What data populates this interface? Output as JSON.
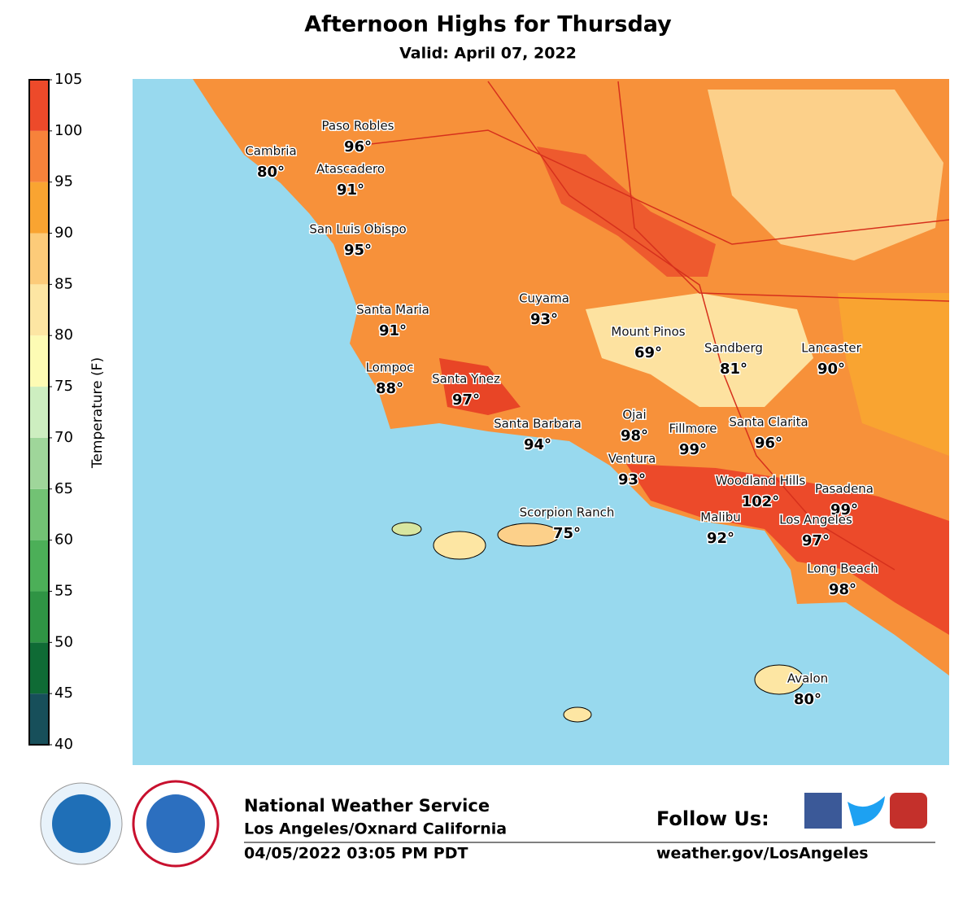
{
  "header": {
    "title": "Afternoon Highs for Thursday",
    "subtitle": "Valid: April 07, 2022"
  },
  "colorbar": {
    "label": "Temperature (F)",
    "ticks": [
      40,
      45,
      50,
      55,
      60,
      65,
      70,
      75,
      80,
      85,
      90,
      95,
      100,
      105
    ],
    "colors": [
      "#174f5a",
      "#0f6b35",
      "#2f9444",
      "#4caf58",
      "#72c274",
      "#9fd69a",
      "#cdeec0",
      "#fdfbb4",
      "#fde6a3",
      "#fccb79",
      "#f9a431",
      "#f7823a",
      "#ed4a2a"
    ]
  },
  "cities": [
    {
      "name": "Paso Robles",
      "temp": "96°"
    },
    {
      "name": "Cambria",
      "temp": "80°"
    },
    {
      "name": "Atascadero",
      "temp": "91°"
    },
    {
      "name": "San Luis Obispo",
      "temp": "95°"
    },
    {
      "name": "Santa Maria",
      "temp": "91°"
    },
    {
      "name": "Cuyama",
      "temp": "93°"
    },
    {
      "name": "Mount Pinos",
      "temp": "69°"
    },
    {
      "name": "Sandberg",
      "temp": "81°"
    },
    {
      "name": "Lancaster",
      "temp": "90°"
    },
    {
      "name": "Lompoc",
      "temp": "88°"
    },
    {
      "name": "Santa Ynez",
      "temp": "97°"
    },
    {
      "name": "Santa Barbara",
      "temp": "94°"
    },
    {
      "name": "Ojai",
      "temp": "98°"
    },
    {
      "name": "Fillmore",
      "temp": "99°"
    },
    {
      "name": "Santa Clarita",
      "temp": "96°"
    },
    {
      "name": "Ventura",
      "temp": "93°"
    },
    {
      "name": "Woodland Hills",
      "temp": "102°"
    },
    {
      "name": "Pasadena",
      "temp": "99°"
    },
    {
      "name": "Scorpion Ranch",
      "temp": "75°"
    },
    {
      "name": "Malibu",
      "temp": "92°"
    },
    {
      "name": "Los Angeles",
      "temp": "97°"
    },
    {
      "name": "Long Beach",
      "temp": "98°"
    },
    {
      "name": "Avalon",
      "temp": "80°"
    }
  ],
  "footer": {
    "org": "National Weather Service",
    "office": "Los Angeles/Oxnard California",
    "issued": "04/05/2022 03:05 PM PDT",
    "follow": "Follow Us:",
    "website": "weather.gov/LosAngeles"
  }
}
